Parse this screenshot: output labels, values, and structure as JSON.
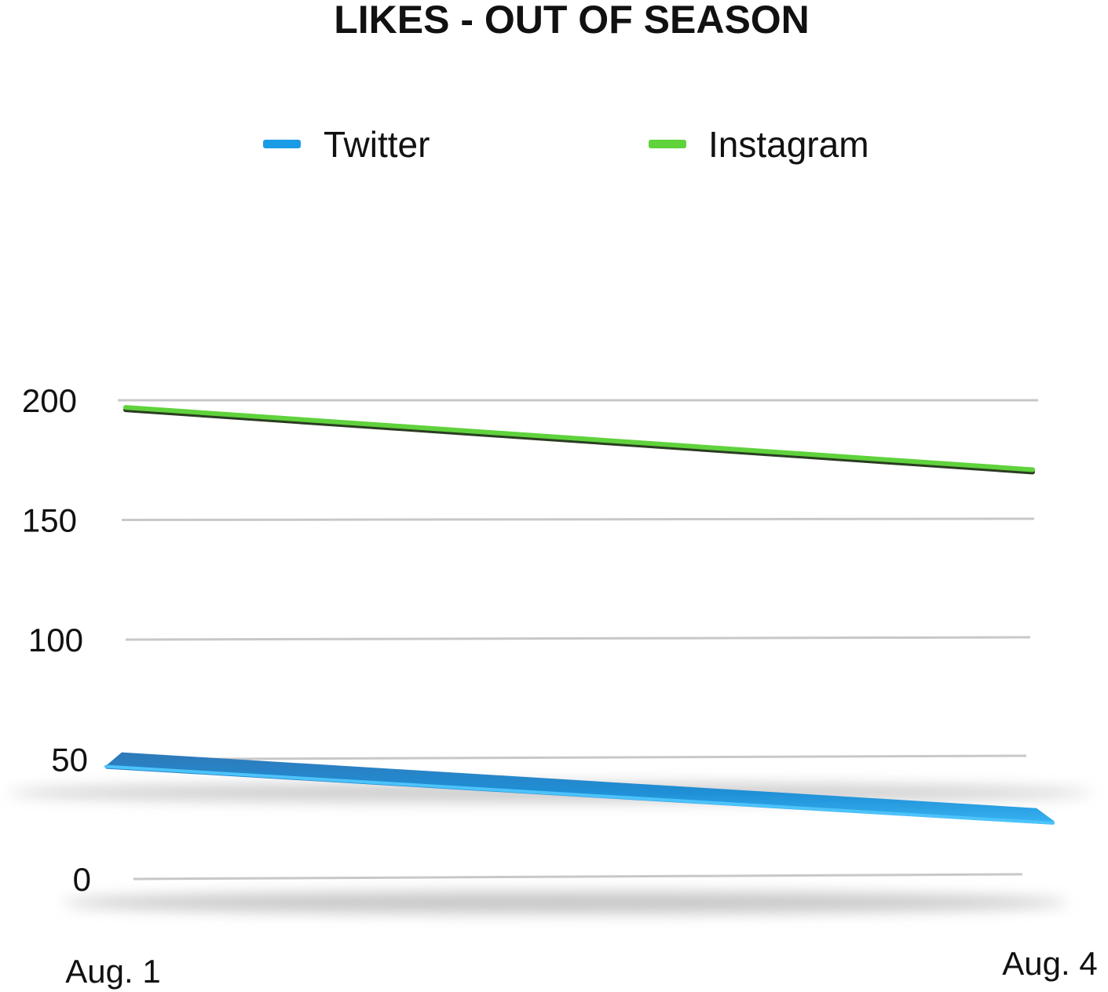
{
  "chart_data": {
    "type": "line",
    "title": "LIKES - OUT OF SEASON",
    "categories": [
      "Aug. 1",
      "Aug. 4"
    ],
    "series": [
      {
        "name": "Twitter",
        "values": [
          48,
          24
        ],
        "color": "#1a9be6"
      },
      {
        "name": "Instagram",
        "values": [
          197,
          171
        ],
        "color": "#5fd23c"
      }
    ],
    "yticks": [
      0,
      50,
      100,
      150,
      200
    ],
    "ylim": [
      0,
      200
    ],
    "xlabel": "",
    "ylabel": "",
    "grid": true,
    "legend_position": "top-center"
  },
  "colors": {
    "gridline": "#c8c8c8",
    "twitter": "#1a9be6",
    "instagram": "#5fd23c"
  }
}
